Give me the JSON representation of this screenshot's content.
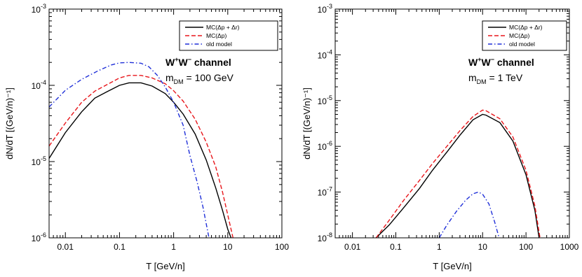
{
  "chart_data": [
    {
      "type": "line",
      "xlabel": "T [GeV/n]",
      "ylabel": "dN/dT [(GeV/n)⁻¹]",
      "xscale": "log",
      "yscale": "log",
      "xlim": [
        0.005,
        100
      ],
      "ylim": [
        1e-06,
        0.001
      ],
      "x_ticks": [
        0.01,
        0.1,
        1,
        10,
        100
      ],
      "x_tick_labels": [
        "0.01",
        "0.1",
        "1",
        "10",
        "100"
      ],
      "y_ticks": [
        1e-06,
        1e-05,
        0.0001,
        0.001
      ],
      "y_tick_labels": [
        [
          "10",
          "-6"
        ],
        [
          "10",
          "-5"
        ],
        [
          "10",
          "-4"
        ],
        [
          "10",
          "-3"
        ]
      ],
      "annotation": {
        "channel": [
          "W",
          "+",
          "W",
          "−",
          " channel"
        ],
        "mass": [
          "m",
          "DM",
          " = 100 GeV"
        ]
      },
      "legend_position": "top-right",
      "series": [
        {
          "name": "MC(Δp + Δr)",
          "color": "#000000",
          "style": "solid",
          "x": [
            0.005,
            0.01,
            0.02,
            0.035,
            0.06,
            0.1,
            0.15,
            0.25,
            0.4,
            0.7,
            1.0,
            1.5,
            2.5,
            4,
            6,
            8,
            10,
            11.5
          ],
          "y": [
            1.1e-05,
            2.4e-05,
            4.5e-05,
            6.8e-05,
            8.3e-05,
            0.0001,
            0.000108,
            0.000108,
            9.8e-05,
            7.8e-05,
            6e-05,
            4.2e-05,
            2.3e-05,
            1.05e-05,
            4.5e-06,
            2.3e-06,
            1.3e-06,
            1e-06
          ]
        },
        {
          "name": "MC(Δp)",
          "color": "#e8161b",
          "style": "dashed",
          "x": [
            0.005,
            0.01,
            0.02,
            0.035,
            0.06,
            0.1,
            0.15,
            0.25,
            0.4,
            0.7,
            1.0,
            1.5,
            2.5,
            4,
            6,
            8,
            10,
            12.5
          ],
          "y": [
            1.6e-05,
            3.2e-05,
            6e-05,
            8.4e-05,
            0.000103,
            0.000125,
            0.000135,
            0.000135,
            0.000125,
            0.000105,
            8.5e-05,
            6.2e-05,
            3.6e-05,
            1.8e-05,
            8.5e-06,
            4e-06,
            2e-06,
            1e-06
          ]
        },
        {
          "name": "old model",
          "color": "#1f2fd8",
          "style": "dashdot",
          "x": [
            0.005,
            0.01,
            0.02,
            0.04,
            0.07,
            0.1,
            0.15,
            0.25,
            0.35,
            0.5,
            0.7,
            1.0,
            1.5,
            2.0,
            2.7,
            3.5,
            4.5
          ],
          "y": [
            5.2e-05,
            8.6e-05,
            0.00012,
            0.000155,
            0.000185,
            0.000197,
            0.0002,
            0.000195,
            0.000175,
            0.000135,
            9.5e-05,
            6e-05,
            3e-05,
            1.2e-05,
            5.5e-06,
            2.5e-06,
            1e-06
          ]
        }
      ]
    },
    {
      "type": "line",
      "xlabel": "T [GeV/n]",
      "ylabel": "dN/dT [(GeV/n)⁻¹]",
      "xscale": "log",
      "yscale": "log",
      "xlim": [
        0.004,
        1000
      ],
      "ylim": [
        1e-08,
        0.001
      ],
      "x_ticks": [
        0.01,
        0.1,
        1,
        10,
        100,
        1000
      ],
      "x_tick_labels": [
        "0.01",
        "0.1",
        "1",
        "10",
        "100",
        "1000"
      ],
      "y_ticks": [
        1e-08,
        1e-07,
        1e-06,
        1e-05,
        0.0001,
        0.001
      ],
      "y_tick_labels": [
        [
          "10",
          "-8"
        ],
        [
          "10",
          "-7"
        ],
        [
          "10",
          "-6"
        ],
        [
          "10",
          "-5"
        ],
        [
          "10",
          "-4"
        ],
        [
          "10",
          "-3"
        ]
      ],
      "annotation": {
        "channel": [
          "W",
          "+",
          "W",
          "−",
          " channel"
        ],
        "mass": [
          "m",
          "DM",
          " = 1 TeV"
        ]
      },
      "legend_position": "top-right",
      "series": [
        {
          "name": "MC(Δp + Δr)",
          "color": "#000000",
          "style": "solid",
          "x": [
            0.035,
            0.07,
            0.15,
            0.35,
            0.7,
            1.5,
            3,
            6,
            10,
            12,
            25,
            50,
            100,
            160,
            200
          ],
          "y": [
            1e-08,
            1.9e-08,
            4.5e-08,
            1.2e-07,
            3e-07,
            7.5e-07,
            1.75e-06,
            3.8e-06,
            5e-06,
            4.8e-06,
            3.3e-06,
            1.3e-06,
            2.4e-07,
            4e-08,
            1e-08
          ]
        },
        {
          "name": "MC(Δp)",
          "color": "#e8161b",
          "style": "dashed",
          "x": [
            0.035,
            0.07,
            0.15,
            0.35,
            0.7,
            1.5,
            3,
            6,
            10,
            12,
            25,
            50,
            100,
            160,
            210
          ],
          "y": [
            1e-08,
            2.4e-08,
            6.5e-08,
            1.8e-07,
            4.2e-07,
            1e-06,
            2.2e-06,
            4.5e-06,
            6.2e-06,
            6e-06,
            4e-06,
            1.6e-06,
            3e-07,
            5e-08,
            1e-08
          ]
        },
        {
          "name": "old model",
          "color": "#1f2fd8",
          "style": "dashdot",
          "x": [
            1.0,
            1.5,
            2.5,
            4,
            6,
            8,
            10,
            14,
            19,
            24
          ],
          "y": [
            1e-08,
            1.9e-08,
            3.8e-08,
            6.5e-08,
            9.2e-08,
            1e-07,
            9e-08,
            5.5e-08,
            2.2e-08,
            1e-08
          ]
        }
      ]
    }
  ]
}
